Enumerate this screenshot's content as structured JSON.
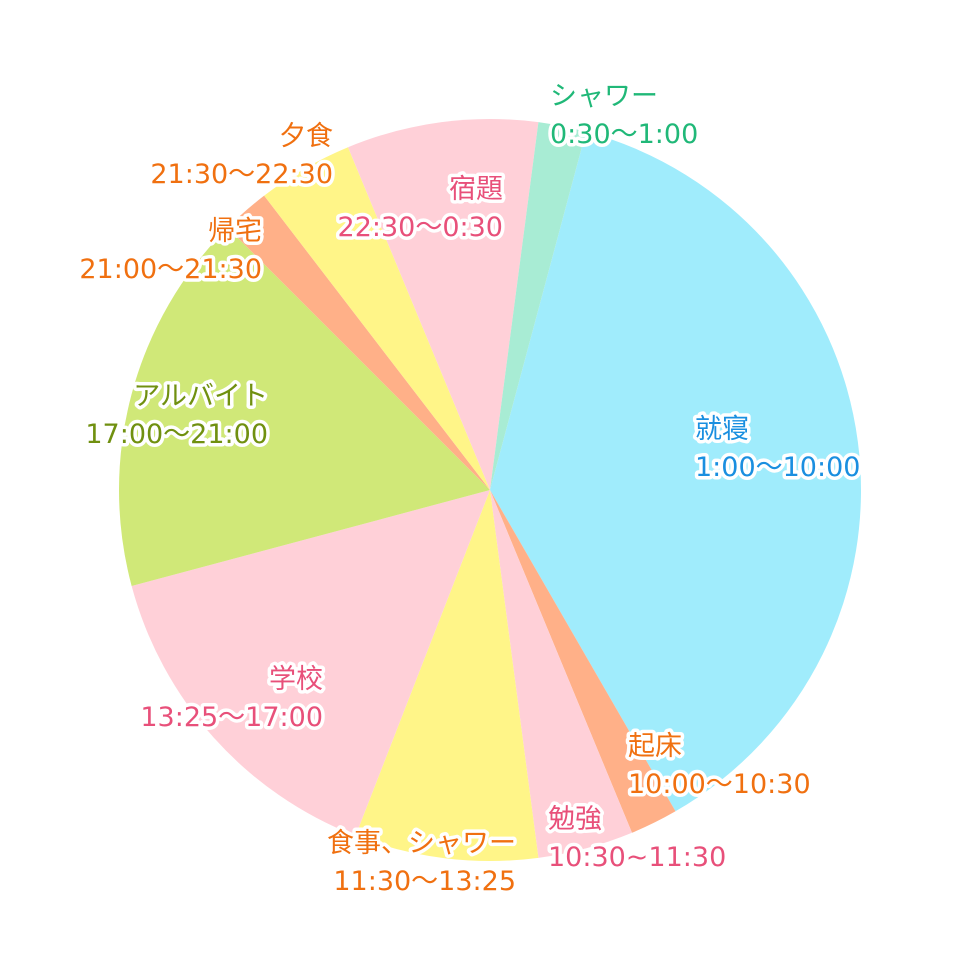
{
  "chart_data": {
    "type": "pie",
    "title": "",
    "unit_note": "",
    "start_angle_deg": 15,
    "total": 1440,
    "slices": [
      {
        "name": "就寝",
        "time": "1:00〜10:00",
        "value": 540,
        "color": "#a0ecfc",
        "label_color": "#1a8fe0",
        "anchor": "start"
      },
      {
        "name": "起床",
        "time": "10:00〜10:30",
        "value": 30,
        "color": "#ffb088",
        "label_color": "#f07010",
        "anchor": "start"
      },
      {
        "name": "勉強",
        "time": "10:30~11:30",
        "value": 60,
        "color": "#ffd0d8",
        "label_color": "#e8507a",
        "anchor": "start"
      },
      {
        "name": "食事、シャワー",
        "time": "11:30〜13:25",
        "value": 115,
        "color": "#fff588",
        "label_color": "#f07010",
        "anchor": "end"
      },
      {
        "name": "学校",
        "time": "13:25〜17:00",
        "value": 215,
        "color": "#ffd0d8",
        "label_color": "#e8507a",
        "anchor": "end"
      },
      {
        "name": "アルバイト",
        "time": "17:00〜21:00",
        "value": 240,
        "color": "#d0e878",
        "label_color": "#709010",
        "anchor": "end"
      },
      {
        "name": "帰宅",
        "time": "21:00〜21:30",
        "value": 30,
        "color": "#ffb088",
        "label_color": "#f07010",
        "anchor": "end"
      },
      {
        "name": "夕食",
        "time": "21:30〜22:30",
        "value": 60,
        "color": "#fff588",
        "label_color": "#f07010",
        "anchor": "end"
      },
      {
        "name": "宿題",
        "time": "22:30〜0:30",
        "value": 120,
        "color": "#ffd0d8",
        "label_color": "#e8507a",
        "anchor": "end"
      },
      {
        "name": "シャワー",
        "time": "0:30〜1:00",
        "value": 30,
        "color": "#a8ecd4",
        "label_color": "#20b878",
        "anchor": "start"
      }
    ]
  }
}
